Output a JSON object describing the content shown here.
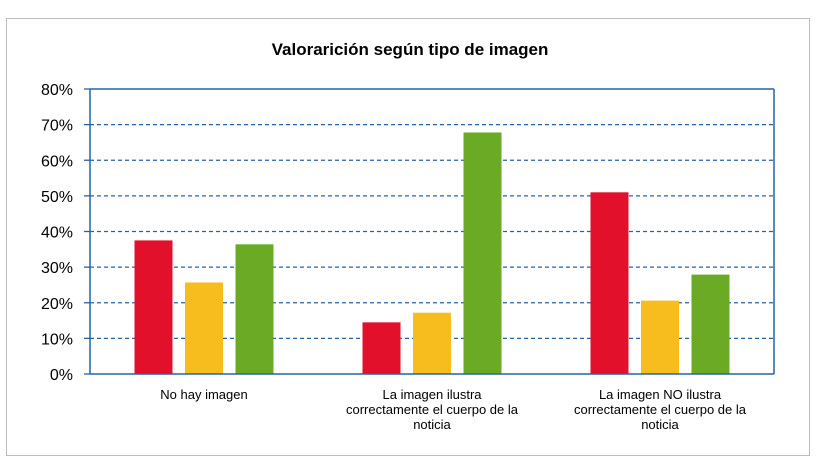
{
  "chart_data": {
    "type": "bar",
    "title": "Valorarición según tipo de imagen",
    "xlabel": "",
    "ylabel": "",
    "ylim": [
      0,
      80
    ],
    "y_ticks": [
      "0%",
      "10%",
      "20%",
      "30%",
      "40%",
      "50%",
      "60%",
      "70%",
      "80%"
    ],
    "grid": "horizontal dashed",
    "legend": "none",
    "categories": [
      [
        "No hay imagen"
      ],
      [
        "La imagen ilustra",
        "correctamente el cuerpo de la",
        "noticia"
      ],
      [
        "La imagen NO ilustra",
        "correctamente el cuerpo de la",
        "noticia"
      ]
    ],
    "series": [
      {
        "values": [
          37.5,
          14.5,
          51
        ],
        "color": "#e2102a"
      },
      {
        "values": [
          25.7,
          17.2,
          20.6
        ],
        "color": "#f7bc1e"
      },
      {
        "values": [
          36.4,
          67.8,
          27.9
        ],
        "color": "#6aaa24"
      }
    ],
    "axis_color": "#2563a8"
  }
}
